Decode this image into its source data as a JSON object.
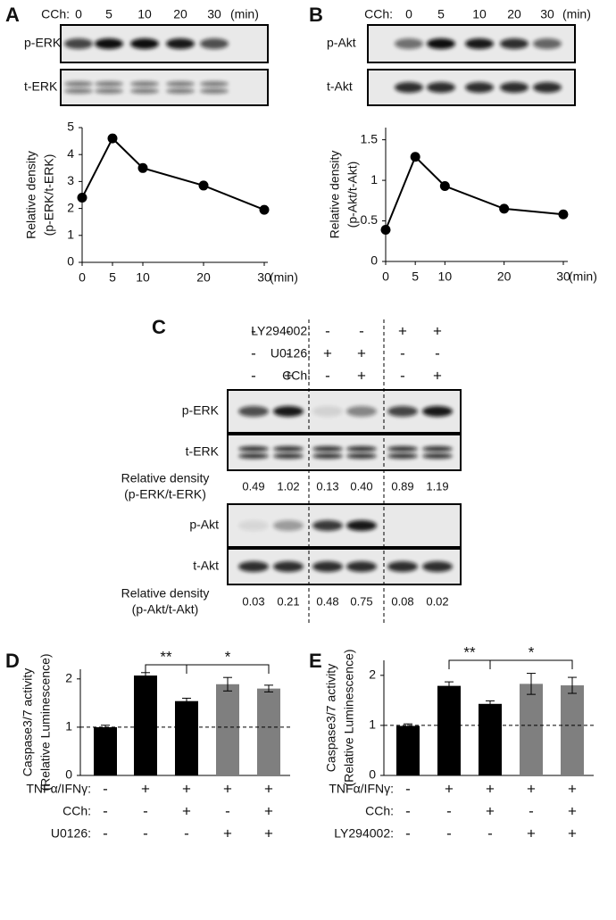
{
  "panel_labels": [
    "A",
    "B",
    "C",
    "D",
    "E"
  ],
  "blots_top": [
    {
      "treatment": "CCh:",
      "times": [
        0,
        5,
        10,
        20,
        30
      ],
      "unit": "(min)",
      "rows": [
        "p-ERK",
        "t-ERK"
      ]
    },
    {
      "treatment": "CCh:",
      "times": [
        0,
        5,
        10,
        20,
        30
      ],
      "unit": "(min)",
      "rows": [
        "p-Akt",
        "t-Akt"
      ]
    }
  ],
  "blot_c": {
    "treatments": [
      {
        "name": "LY294002:",
        "signs": [
          "-",
          "-",
          "-",
          "-",
          "+",
          "+"
        ]
      },
      {
        "name": "U0126:",
        "signs": [
          "-",
          "-",
          "+",
          "+",
          "-",
          "-"
        ]
      },
      {
        "name": "CCh:",
        "signs": [
          "-",
          "+",
          "-",
          "+",
          "-",
          "+"
        ]
      }
    ],
    "rows": [
      "p-ERK",
      "t-ERK",
      "p-Akt",
      "t-Akt"
    ],
    "densities": [
      {
        "label": [
          "Relative density",
          "(p-ERK/t-ERK)"
        ],
        "values": [
          "0.49",
          "1.02",
          "0.13",
          "0.40",
          "0.89",
          "1.19"
        ]
      },
      {
        "label": [
          "Relative density",
          "(p-Akt/t-Akt)"
        ],
        "values": [
          "0.03",
          "0.21",
          "0.48",
          "0.75",
          "0.08",
          "0.02"
        ]
      }
    ]
  },
  "chart_data": [
    {
      "type": "line",
      "x": [
        0,
        5,
        10,
        20,
        30
      ],
      "values": [
        2.4,
        4.6,
        3.5,
        2.85,
        1.95
      ],
      "color": "#000000",
      "xlim": [
        0,
        30
      ],
      "xticks": [
        0,
        5,
        10,
        20,
        30
      ],
      "xlabel": "(min)",
      "ylim": [
        0,
        5
      ],
      "yticks": [
        0,
        1,
        2,
        3,
        4,
        5
      ],
      "ylabel": [
        "Relative density",
        "(p-ERK/t-ERK)"
      ]
    },
    {
      "type": "line",
      "x": [
        0,
        5,
        10,
        20,
        30
      ],
      "values": [
        0.39,
        1.29,
        0.93,
        0.65,
        0.58
      ],
      "color": "#000000",
      "xlim": [
        0,
        30
      ],
      "xticks": [
        0,
        5,
        10,
        20,
        30
      ],
      "xlabel": "(min)",
      "ylim": [
        0,
        1.65
      ],
      "yticks": [
        0,
        0.5,
        1,
        1.5
      ],
      "ylabel": [
        "Relative density",
        "(p-Akt/t-Akt)"
      ]
    },
    {
      "type": "bar",
      "categories": [
        null,
        null,
        null,
        null,
        null
      ],
      "values": [
        1.0,
        2.07,
        1.54,
        1.89,
        1.8
      ],
      "errors": [
        0.04,
        0.06,
        0.06,
        0.14,
        0.07
      ],
      "colors": [
        "#000000",
        "#000000",
        "#000000",
        "#7f7f7f",
        "#7f7f7f"
      ],
      "ylim": [
        0,
        2.2
      ],
      "yticks": [
        0,
        1,
        2
      ],
      "reference_line": 1,
      "ylabel": [
        "Caspase3/7 activity",
        "(Relative Luminescence)"
      ],
      "conditions": [
        {
          "name": "TNFα/IFNγ:",
          "signs": [
            "-",
            "+",
            "+",
            "+",
            "+"
          ]
        },
        {
          "name": "CCh:",
          "signs": [
            "-",
            "-",
            "+",
            "-",
            "+"
          ]
        },
        {
          "name": "U0126:",
          "signs": [
            "-",
            "-",
            "-",
            "+",
            "+"
          ]
        }
      ],
      "significance": [
        "**",
        "*"
      ]
    },
    {
      "type": "bar",
      "categories": [
        null,
        null,
        null,
        null,
        null
      ],
      "values": [
        0.99,
        1.79,
        1.43,
        1.83,
        1.8
      ],
      "errors": [
        0.04,
        0.08,
        0.06,
        0.21,
        0.16
      ],
      "colors": [
        "#000000",
        "#000000",
        "#000000",
        "#7f7f7f",
        "#7f7f7f"
      ],
      "ylim": [
        0,
        2.3
      ],
      "yticks": [
        0,
        1,
        2
      ],
      "reference_line": 1,
      "ylabel": [
        "Caspase3/7 activity",
        "(Relative Luminescence)"
      ],
      "conditions": [
        {
          "name": "TNFα/IFNγ:",
          "signs": [
            "-",
            "+",
            "+",
            "+",
            "+"
          ]
        },
        {
          "name": "CCh:",
          "signs": [
            "-",
            "-",
            "+",
            "-",
            "+"
          ]
        },
        {
          "name": "LY294002:",
          "signs": [
            "-",
            "-",
            "-",
            "+",
            "+"
          ]
        }
      ],
      "significance": [
        "**",
        "*"
      ]
    }
  ]
}
